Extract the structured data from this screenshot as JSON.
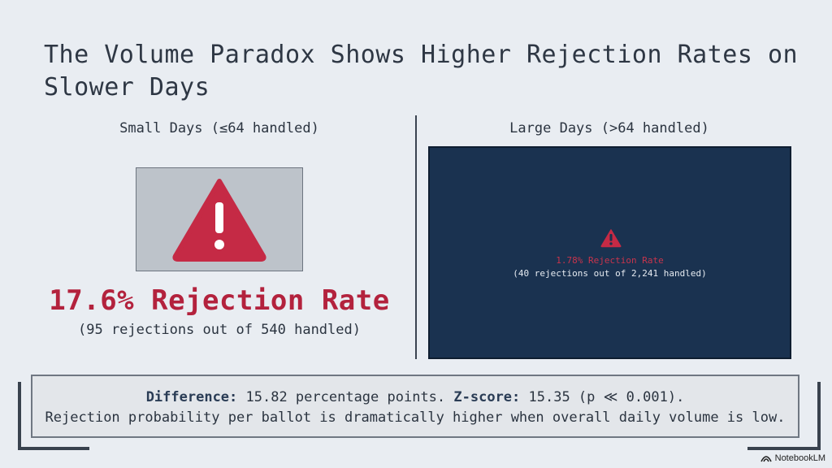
{
  "title": "The Volume Paradox Shows Higher Rejection Rates on Slower Days",
  "small": {
    "heading": "Small Days (≤64 handled)",
    "rate": "17.6% Rejection Rate",
    "detail": "(95 rejections out of 540 handled)"
  },
  "large": {
    "heading": "Large Days (>64 handled)",
    "rate": "1.78% Rejection Rate",
    "detail": "(40 rejections out of 2,241 handled)"
  },
  "summary": {
    "difference_label": "Difference:",
    "difference_text": " 15.82 percentage points. ",
    "zscore_label": "Z-score:",
    "zscore_text": " 15.35 (p ≪ 0.001).",
    "line2": "Rejection probability per ballot is dramatically higher when overall daily volume is low."
  },
  "brand": "NotebookLM",
  "icons": {
    "warning": "warning-icon",
    "brand": "notebooklm-logo-icon"
  },
  "colors": {
    "alert_red": "#b3223d",
    "panel_navy": "#1a3250",
    "background": "#e9edf2"
  }
}
